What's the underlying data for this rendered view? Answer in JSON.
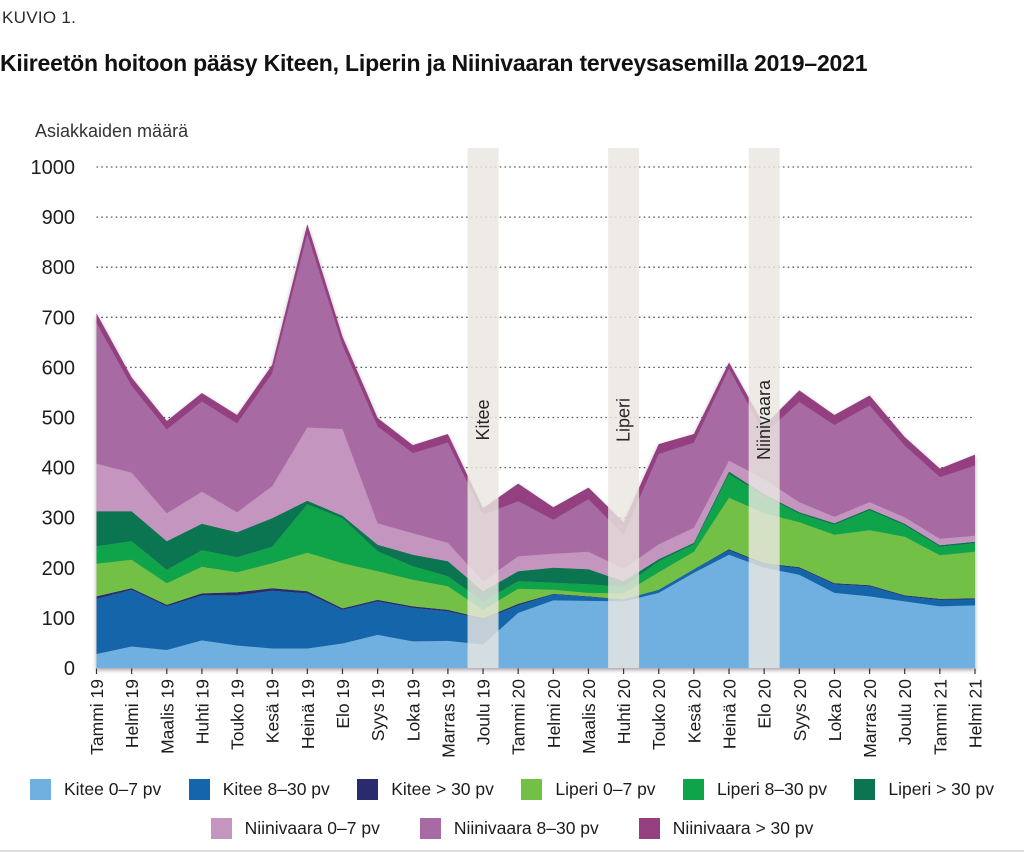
{
  "figure": {
    "kicker": "KUVIO 1.",
    "title": "Kiireetön hoitoon pääsy Kiteen, Liperin ja Niinivaaran terveysasemilla 2019–2021",
    "y_axis_title": "Asiakkaiden määrä"
  },
  "chart_data": {
    "type": "area",
    "stacked": true,
    "title": "Kiireetön hoitoon pääsy Kiteen, Liperin ja Niinivaaran terveysasemilla 2019–2021",
    "ylabel": "Asiakkaiden määrä",
    "xlabel": "",
    "ylim": [
      0,
      1000
    ],
    "y_ticks": [
      0,
      100,
      200,
      300,
      400,
      500,
      600,
      700,
      800,
      900,
      1000
    ],
    "grid": "dotted-horizontal",
    "legend_position": "bottom",
    "x": [
      "Tammi 19",
      "Helmi 19",
      "Maalis 19",
      "Huhti 19",
      "Touko 19",
      "Kesä 19",
      "Heinä 19",
      "Elo 19",
      "Syys 19",
      "Loka 19",
      "Marras 19",
      "Joulu 19",
      "Tammi 20",
      "Helmi 20",
      "Maalis 20",
      "Huhti 20",
      "Touko 20",
      "Kesä 20",
      "Heinä 20",
      "Elo 20",
      "Syys 20",
      "Loka 20",
      "Marras 20",
      "Joulu 20",
      "Tammi 21",
      "Helmi 21"
    ],
    "series": [
      {
        "name": "Kitee 0–7 pv",
        "color": "#6fb0e0",
        "values": [
          28,
          43,
          36,
          55,
          45,
          39,
          39,
          49,
          66,
          53,
          54,
          47,
          110,
          135,
          134,
          133,
          150,
          190,
          226,
          200,
          186,
          150,
          143,
          133,
          123,
          125
        ]
      },
      {
        "name": "Kitee 8–30 pv",
        "color": "#1465a9",
        "values": [
          110,
          113,
          87,
          90,
          100,
          115,
          110,
          67,
          67,
          67,
          59,
          50,
          15,
          12,
          8,
          4,
          6,
          7,
          9,
          7,
          13,
          17,
          20,
          10,
          13,
          12
        ]
      },
      {
        "name": "Kitee > 30 pv",
        "color": "#2b2a6c",
        "values": [
          5,
          3,
          3,
          4,
          6,
          5,
          4,
          3,
          3,
          3,
          3,
          2,
          3,
          1,
          1,
          0,
          0,
          0,
          2,
          2,
          2,
          2,
          2,
          2,
          2,
          2
        ]
      },
      {
        "name": "Liperi 0–7 pv",
        "color": "#73c046",
        "values": [
          65,
          57,
          43,
          53,
          40,
          50,
          77,
          90,
          57,
          53,
          47,
          17,
          30,
          8,
          7,
          12,
          35,
          35,
          103,
          100,
          90,
          97,
          110,
          117,
          87,
          93
        ]
      },
      {
        "name": "Liperi 8–30 pv",
        "color": "#0fa44a",
        "values": [
          35,
          37,
          27,
          33,
          30,
          33,
          97,
          90,
          40,
          27,
          20,
          17,
          15,
          14,
          17,
          13,
          22,
          15,
          47,
          35,
          17,
          20,
          40,
          23,
          17,
          17
        ]
      },
      {
        "name": "Liperi > 30 pv",
        "color": "#0b7451",
        "values": [
          70,
          60,
          57,
          53,
          50,
          57,
          7,
          5,
          13,
          23,
          30,
          20,
          20,
          30,
          30,
          11,
          4,
          3,
          5,
          3,
          3,
          3,
          3,
          3,
          3,
          3
        ]
      },
      {
        "name": "Niinivaara 0–7 pv",
        "color": "#c495bf",
        "values": [
          95,
          77,
          56,
          64,
          40,
          64,
          146,
          173,
          43,
          43,
          37,
          20,
          30,
          28,
          35,
          25,
          30,
          30,
          22,
          30,
          20,
          13,
          13,
          13,
          13,
          12
        ]
      },
      {
        "name": "Niinivaara 8–30 pv",
        "color": "#a76aa2",
        "values": [
          280,
          173,
          167,
          180,
          177,
          225,
          386,
          167,
          193,
          160,
          200,
          133,
          110,
          68,
          105,
          68,
          180,
          170,
          183,
          90,
          200,
          183,
          193,
          143,
          123,
          140
        ]
      },
      {
        "name": "Niinivaara > 30 pv",
        "color": "#933f80",
        "values": [
          20,
          17,
          17,
          17,
          17,
          17,
          20,
          17,
          17,
          16,
          17,
          13,
          35,
          25,
          23,
          25,
          20,
          17,
          13,
          17,
          23,
          20,
          20,
          17,
          17,
          22
        ]
      }
    ],
    "annotations": [
      {
        "label": "Kitee",
        "x_index": 11
      },
      {
        "label": "Liperi",
        "x_index": 15
      },
      {
        "label": "Niinivaara",
        "x_index": 19
      }
    ],
    "band_color": "#eae7e0"
  },
  "legend": {
    "rows": [
      [
        0,
        1,
        2,
        3,
        4,
        5
      ],
      [
        6,
        7,
        8
      ]
    ]
  }
}
